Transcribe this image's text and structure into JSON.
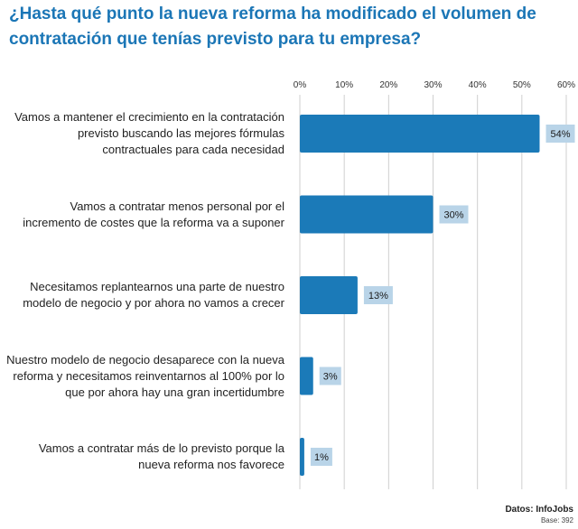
{
  "title": "¿Hasta qué punto la nueva reforma ha modificado el volumen de contratación que tenías previsto para tu empresa?",
  "source": "Datos: InfoJobs",
  "base": "Base: 392",
  "colors": {
    "bar": "#1b7ab8",
    "label_bg": "#b9d4e8",
    "title": "#1b76b6",
    "grid": "#cfcfcf"
  },
  "chart_data": {
    "type": "bar",
    "orientation": "horizontal",
    "title": "¿Hasta qué punto la nueva reforma ha modificado el volumen de contratación que tenías previsto para tu empresa?",
    "xlim": [
      0,
      60
    ],
    "ticks": [
      "0%",
      "10%",
      "20%",
      "30%",
      "40%",
      "50%",
      "60%"
    ],
    "tick_values": [
      0,
      10,
      20,
      30,
      40,
      50,
      60
    ],
    "grid": true,
    "categories": [
      "Vamos a mantener el crecimiento en la contratación previsto buscando las mejores fórmulas contractuales para cada necesidad",
      "Vamos a contratar menos personal por el incremento de costes que la reforma va a suponer",
      "Necesitamos replantearnos una parte de nuestro modelo de negocio y por ahora no vamos a crecer",
      "Nuestro modelo de negocio desaparece con la nueva reforma y necesitamos reinventarnos al 100% por lo que por ahora hay una gran incertidumbre",
      "Vamos a contratar más de lo previsto porque la nueva reforma nos favorece"
    ],
    "category_lines": [
      [
        "Vamos a mantener el crecimiento en la contratación",
        "previsto buscando las mejores fórmulas",
        "contractuales para cada necesidad"
      ],
      [
        "Vamos a contratar menos personal por el",
        "incremento de costes que la reforma va a suponer"
      ],
      [
        "Necesitamos replantearnos una parte de nuestro",
        "modelo de negocio y por ahora no vamos a crecer"
      ],
      [
        "Nuestro modelo de negocio desaparece con la nueva",
        "reforma y necesitamos reinventarnos al 100% por lo",
        "que por ahora hay una gran incertidumbre"
      ],
      [
        "Vamos a contratar más de lo previsto porque la",
        "nueva reforma nos favorece"
      ]
    ],
    "values": [
      54,
      30,
      13,
      3,
      1
    ],
    "value_labels": [
      "54%",
      "30%",
      "13%",
      "3%",
      "1%"
    ]
  }
}
